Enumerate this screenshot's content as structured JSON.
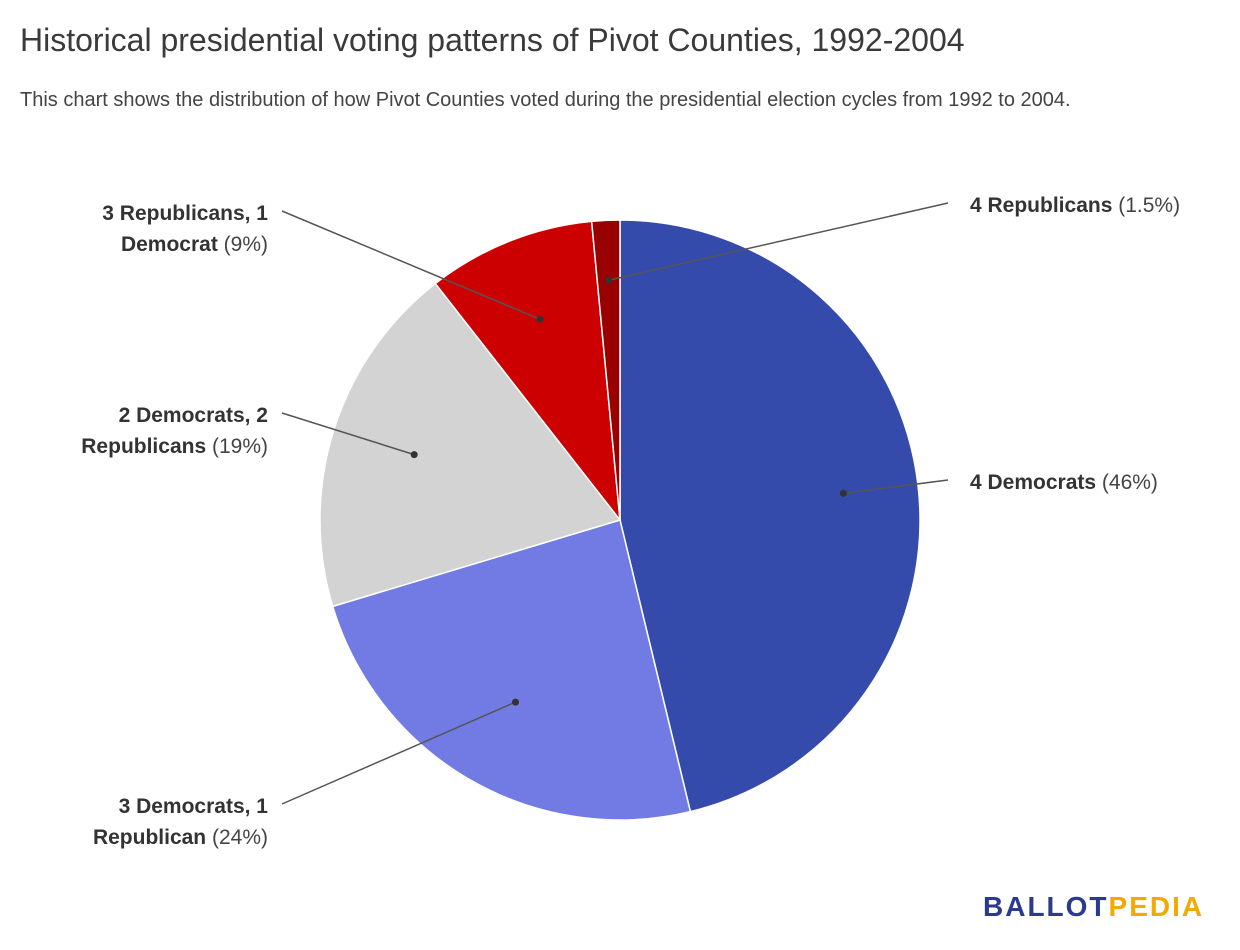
{
  "title": "Historical presidential voting patterns of Pivot Counties, 1992-2004",
  "subtitle": "This chart shows the distribution of how Pivot Counties voted during the presidential election cycles from 1992 to 2004.",
  "logo": {
    "part1": "BALLOT",
    "part2": "PEDIA",
    "color1": "#2b3a8f",
    "color2": "#f2a900"
  },
  "chart_data": {
    "type": "pie",
    "title": "Historical presidential voting patterns of Pivot Counties, 1992-2004",
    "start_angle": "12 o'clock, clockwise",
    "slices": [
      {
        "label": "4 Democrats",
        "label_lines": [
          "4 Democrats"
        ],
        "value": 46,
        "pct_text": "(46%)",
        "color": "#354bab"
      },
      {
        "label": "3 Democrats, 1 Republican",
        "label_lines": [
          "3 Democrats, 1",
          "Republican"
        ],
        "value": 24,
        "pct_text": "(24%)",
        "color": "#727be4"
      },
      {
        "label": "2 Democrats, 2 Republicans",
        "label_lines": [
          "2 Democrats, 2",
          "Republicans"
        ],
        "value": 19,
        "pct_text": "(19%)",
        "color": "#d3d3d3"
      },
      {
        "label": "3 Republicans, 1 Democrat",
        "label_lines": [
          "3 Republicans, 1",
          "Democrat"
        ],
        "value": 9,
        "pct_text": "(9%)",
        "color": "#cc0000"
      },
      {
        "label": "4 Republicans",
        "label_lines": [
          "4 Republicans"
        ],
        "value": 1.5,
        "pct_text": "(1.5%)",
        "color": "#990000"
      }
    ]
  }
}
